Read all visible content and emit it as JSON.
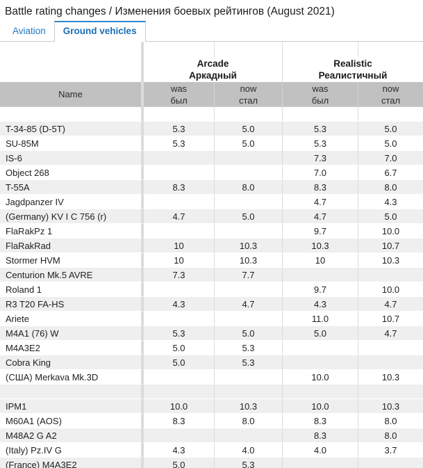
{
  "title": "Battle rating changes / Изменения боевых рейтингов (August 2021)",
  "tabs": [
    {
      "label": "Aviation",
      "active": false
    },
    {
      "label": "Ground vehicles",
      "active": true
    }
  ],
  "colors": {
    "accent_blue": "#2279c4",
    "accent_blue_dark": "#1c6fb8",
    "accent_border": "#2e86cc",
    "header_gray": "#c1c1c1",
    "row_shade": "#efefef"
  },
  "table": {
    "name_header": "Name",
    "groups": [
      {
        "en": "Arcade",
        "ru": "Аркадный"
      },
      {
        "en": "Realistic",
        "ru": "Реалистичный"
      }
    ],
    "sub_headers": [
      {
        "en": "was",
        "ru": "был"
      },
      {
        "en": "now",
        "ru": "стал"
      },
      {
        "en": "was",
        "ru": "был"
      },
      {
        "en": "now",
        "ru": "стал"
      }
    ],
    "rows": [
      {
        "name": "T-34-85 (D-5T)",
        "arcade_was": "5.3",
        "arcade_now": "5.0",
        "realistic_was": "5.3",
        "realistic_now": "5.0"
      },
      {
        "name": "SU-85M",
        "arcade_was": "5.3",
        "arcade_now": "5.0",
        "realistic_was": "5.3",
        "realistic_now": "5.0"
      },
      {
        "name": "IS-6",
        "arcade_was": "",
        "arcade_now": "",
        "realistic_was": "7.3",
        "realistic_now": "7.0"
      },
      {
        "name": "Object 268",
        "arcade_was": "",
        "arcade_now": "",
        "realistic_was": "7.0",
        "realistic_now": "6.7"
      },
      {
        "name": "T-55A",
        "arcade_was": "8.3",
        "arcade_now": "8.0",
        "realistic_was": "8.3",
        "realistic_now": "8.0"
      },
      {
        "name": "Jagdpanzer IV",
        "arcade_was": "",
        "arcade_now": "",
        "realistic_was": "4.7",
        "realistic_now": "4.3"
      },
      {
        "name": "(Germany) KV I C 756 (r)",
        "arcade_was": "4.7",
        "arcade_now": "5.0",
        "realistic_was": "4.7",
        "realistic_now": "5.0"
      },
      {
        "name": "FlaRakPz 1",
        "arcade_was": "",
        "arcade_now": "",
        "realistic_was": "9.7",
        "realistic_now": "10.0"
      },
      {
        "name": "FlaRakRad",
        "arcade_was": "10",
        "arcade_now": "10.3",
        "realistic_was": "10.3",
        "realistic_now": "10.7"
      },
      {
        "name": "Stormer HVM",
        "arcade_was": "10",
        "arcade_now": "10.3",
        "realistic_was": "10",
        "realistic_now": "10.3"
      },
      {
        "name": "Centurion Mk.5 AVRE",
        "arcade_was": "7.3",
        "arcade_now": "7.7",
        "realistic_was": "",
        "realistic_now": ""
      },
      {
        "name": "Roland 1",
        "arcade_was": "",
        "arcade_now": "",
        "realistic_was": "9.7",
        "realistic_now": "10.0"
      },
      {
        "name": "R3 T20 FA-HS",
        "arcade_was": "4.3",
        "arcade_now": "4.7",
        "realistic_was": "4.3",
        "realistic_now": "4.7"
      },
      {
        "name": "Ariete",
        "arcade_was": "",
        "arcade_now": "",
        "realistic_was": "11.0",
        "realistic_now": "10.7"
      },
      {
        "name": "M4A1 (76) W",
        "arcade_was": "5.3",
        "arcade_now": "5.0",
        "realistic_was": "5.0",
        "realistic_now": "4.7"
      },
      {
        "name": "M4A3E2",
        "arcade_was": "5.0",
        "arcade_now": "5.3",
        "realistic_was": "",
        "realistic_now": ""
      },
      {
        "name": "Cobra King",
        "arcade_was": "5.0",
        "arcade_now": "5.3",
        "realistic_was": "",
        "realistic_now": ""
      },
      {
        "name": "(США) Merkava Mk.3D",
        "arcade_was": "",
        "arcade_now": "",
        "realistic_was": "10.0",
        "realistic_now": "10.3"
      },
      {
        "spacer": true
      },
      {
        "name": "IPM1",
        "arcade_was": "10.0",
        "arcade_now": "10.3",
        "realistic_was": "10.0",
        "realistic_now": "10.3"
      },
      {
        "name": "M60A1 (AOS)",
        "arcade_was": "8.3",
        "arcade_now": "8.0",
        "realistic_was": "8.3",
        "realistic_now": "8.0"
      },
      {
        "name": "M48A2 G A2",
        "arcade_was": "",
        "arcade_now": "",
        "realistic_was": "8.3",
        "realistic_now": "8.0"
      },
      {
        "name": "(Italy) Pz.IV G",
        "arcade_was": "4.3",
        "arcade_now": "4.0",
        "realistic_was": "4.0",
        "realistic_now": "3.7"
      },
      {
        "name": "(France) M4A3E2",
        "arcade_was": "5.0",
        "arcade_now": "5.3",
        "realistic_was": "",
        "realistic_now": ""
      }
    ]
  }
}
